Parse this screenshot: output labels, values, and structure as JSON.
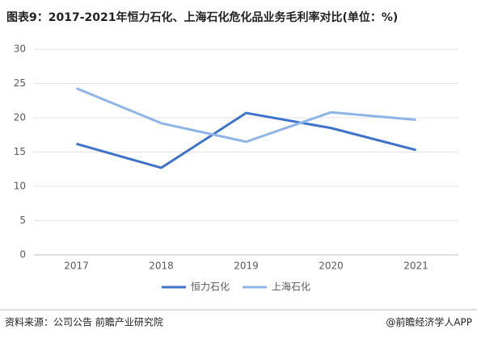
{
  "chart_data": {
    "type": "line",
    "title": "图表9：2017-2021年恒力石化、上海石化危化品业务毛利率对比(单位：%)",
    "categories": [
      "2017",
      "2018",
      "2019",
      "2020",
      "2021"
    ],
    "series": [
      {
        "name": "恒力石化",
        "color": "#3d73c9",
        "values": [
          16.2,
          12.7,
          20.7,
          18.5,
          15.3
        ]
      },
      {
        "name": "上海石化",
        "color": "#8fb5e6",
        "values": [
          24.3,
          19.2,
          16.5,
          20.8,
          19.7
        ]
      }
    ],
    "ylim": [
      0,
      30
    ],
    "yticks": [
      0,
      5,
      10,
      15,
      20,
      25,
      30
    ],
    "grid": true,
    "legend": "bottom",
    "source": "资料来源：公司公告 前瞻产业研究院",
    "credit": "@前瞻经济学人APP"
  }
}
